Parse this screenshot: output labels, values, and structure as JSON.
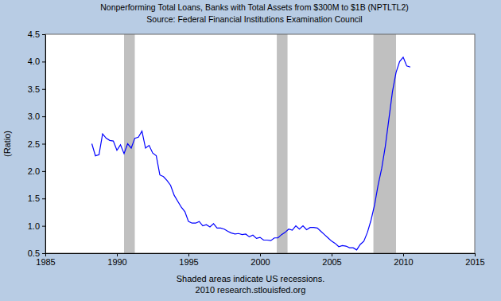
{
  "chart_data": {
    "type": "line",
    "title": "Nonperforming Total Loans, Banks with Total Assets from $300M to $1B (NPTLTL2)",
    "subtitle": "Source: Federal Financial Institutions Examination Council",
    "y_label": "(Ratio)",
    "annotations": [
      "Shaded areas indicate US recessions.",
      "2010 research.stlouisfed.org"
    ],
    "color": "#0000ff",
    "grid": false,
    "xlim": [
      1985,
      2015
    ],
    "xticks": [
      1985,
      1990,
      1995,
      2000,
      2005,
      2010,
      2015
    ],
    "ylim": [
      0.5,
      4.5
    ],
    "yticks": [
      0.5,
      {
        "value": 1,
        "label": "1.0"
      },
      1.5,
      {
        "value": 2,
        "label": "2.0"
      },
      2.5,
      {
        "value": 3,
        "label": "3.0"
      },
      3.5,
      {
        "value": 4,
        "label": "4.0"
      },
      4.5
    ],
    "recessions": [
      [
        1990.5,
        1991.25
      ],
      [
        2001.17,
        2001.92
      ],
      [
        2007.92,
        2009.5
      ]
    ],
    "x": [
      1988.25,
      1988.5,
      1988.75,
      1989.0,
      1989.25,
      1989.5,
      1989.75,
      1990.0,
      1990.25,
      1990.5,
      1990.75,
      1991.0,
      1991.25,
      1991.5,
      1991.75,
      1992.0,
      1992.25,
      1992.5,
      1992.75,
      1993.0,
      1993.25,
      1993.5,
      1993.75,
      1994.0,
      1994.25,
      1994.5,
      1994.75,
      1995.0,
      1995.25,
      1995.5,
      1995.75,
      1996.0,
      1996.25,
      1996.5,
      1996.75,
      1997.0,
      1997.25,
      1997.5,
      1997.75,
      1998.0,
      1998.25,
      1998.5,
      1998.75,
      1999.0,
      1999.25,
      1999.5,
      1999.75,
      2000.0,
      2000.25,
      2000.5,
      2000.75,
      2001.0,
      2001.25,
      2001.5,
      2001.75,
      2002.0,
      2002.25,
      2002.5,
      2002.75,
      2003.0,
      2003.25,
      2003.5,
      2003.75,
      2004.0,
      2004.25,
      2004.5,
      2004.75,
      2005.0,
      2005.25,
      2005.5,
      2005.75,
      2006.0,
      2006.25,
      2006.5,
      2006.75,
      2007.0,
      2007.25,
      2007.5,
      2007.75,
      2008.0,
      2008.25,
      2008.5,
      2008.75,
      2009.0,
      2009.25,
      2009.5,
      2009.75,
      2010.0,
      2010.25,
      2010.5
    ],
    "values": [
      2.5,
      2.28,
      2.3,
      2.68,
      2.6,
      2.56,
      2.55,
      2.38,
      2.48,
      2.32,
      2.5,
      2.42,
      2.6,
      2.62,
      2.73,
      2.42,
      2.47,
      2.33,
      2.28,
      1.93,
      1.9,
      1.83,
      1.74,
      1.56,
      1.45,
      1.34,
      1.26,
      1.08,
      1.05,
      1.05,
      1.08,
      1.0,
      1.02,
      0.98,
      1.04,
      0.96,
      0.96,
      0.94,
      0.9,
      0.87,
      0.85,
      0.86,
      0.84,
      0.85,
      0.8,
      0.83,
      0.77,
      0.79,
      0.74,
      0.74,
      0.73,
      0.78,
      0.78,
      0.84,
      0.88,
      0.94,
      0.92,
      1.0,
      0.94,
      1.0,
      0.93,
      0.97,
      0.97,
      0.96,
      0.9,
      0.84,
      0.78,
      0.72,
      0.68,
      0.62,
      0.64,
      0.63,
      0.6,
      0.6,
      0.56,
      0.66,
      0.72,
      0.88,
      1.1,
      1.38,
      1.75,
      2.05,
      2.45,
      2.95,
      3.45,
      3.8,
      4.0,
      4.08,
      3.92,
      3.9
    ]
  }
}
